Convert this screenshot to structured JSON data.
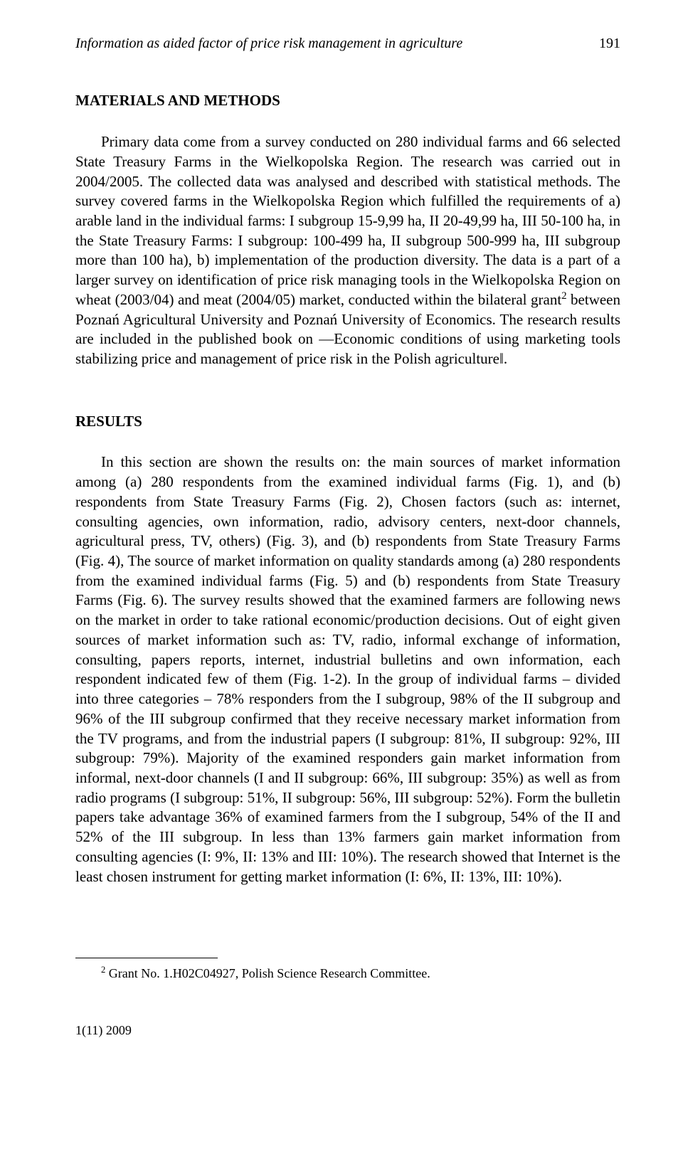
{
  "header": {
    "running_title": "Information as aided factor of price risk management in agriculture",
    "page_number": "191"
  },
  "sections": {
    "materials": {
      "heading": "MATERIALS AND METHODS",
      "paragraph": "Primary data come from a survey conducted on 280 individual farms and 66 selected State Treasury Farms in the Wielkopolska Region. The research was carried out in 2004/2005. The collected data was analysed and described with statistical methods. The survey covered farms in the Wielkopolska Region which fulfilled the requirements of a) arable land in the individual farms: I subgroup 15-9,99 ha, II 20-49,99 ha, III 50-100 ha, in the State Treasury Farms: I subgroup: 100-499 ha, II subgroup 500-999 ha, III subgroup more than 100 ha), b) implementation of the production diversity. The data is a part of a larger survey on identification of price risk managing tools in the Wielkopolska Region on wheat (2003/04) and meat (2004/05) market, conducted within the bilateral grant",
      "paragraph_after_sup": " between Poznań Agricultural University and Poznań University of Economics. The research results are included in the published book on ―Economic conditions of using marketing tools stabilizing price and management of price risk in the Polish agriculture‖.",
      "footnote_marker": "2"
    },
    "results": {
      "heading": "RESULTS",
      "paragraph": "In this section are shown the results on: the main sources of market information among (a) 280 respondents from the examined individual farms (Fig. 1), and (b) respondents from State Treasury Farms (Fig. 2), Chosen factors (such as: internet, consulting agencies, own information, radio, advisory centers, next-door channels, agricultural press, TV, others) (Fig. 3), and (b) respondents from State Treasury Farms (Fig. 4), The source of market information on quality standards among (a) 280 respondents from the examined individual farms (Fig. 5) and (b) respondents from State Treasury Farms (Fig. 6). The survey results showed that the examined farmers are following news on the market in order to take rational economic/production decisions. Out of eight given sources of market information such as: TV, radio, informal exchange of information, consulting, papers reports, internet, industrial bulletins and own information, each respondent indicated few of them (Fig. 1-2). In the group of individual farms – divided into three categories – 78% responders from the I subgroup, 98% of the II subgroup and 96% of the III subgroup confirmed that they receive necessary market information from the TV programs, and from the industrial papers (I subgroup: 81%, II subgroup: 92%, III subgroup: 79%). Majority of the examined responders gain market information from informal, next-door channels (I and II subgroup: 66%, III subgroup: 35%) as well as from radio programs (I subgroup: 51%, II subgroup: 56%, III subgroup: 52%). Form the bulletin papers take advantage 36% of examined farmers from the I subgroup, 54% of the II and 52% of the III subgroup. In less than 13% farmers gain market information from consulting agencies (I: 9%, II: 13% and III: 10%). The research showed that Internet is the least chosen instrument for getting market information (I: 6%, II: 13%, III: 10%)."
    }
  },
  "footnote": {
    "marker": "2",
    "text": " Grant No. 1.H02C04927, Polish Science Research Committee."
  },
  "footer": {
    "text": "1(11) 2009"
  }
}
